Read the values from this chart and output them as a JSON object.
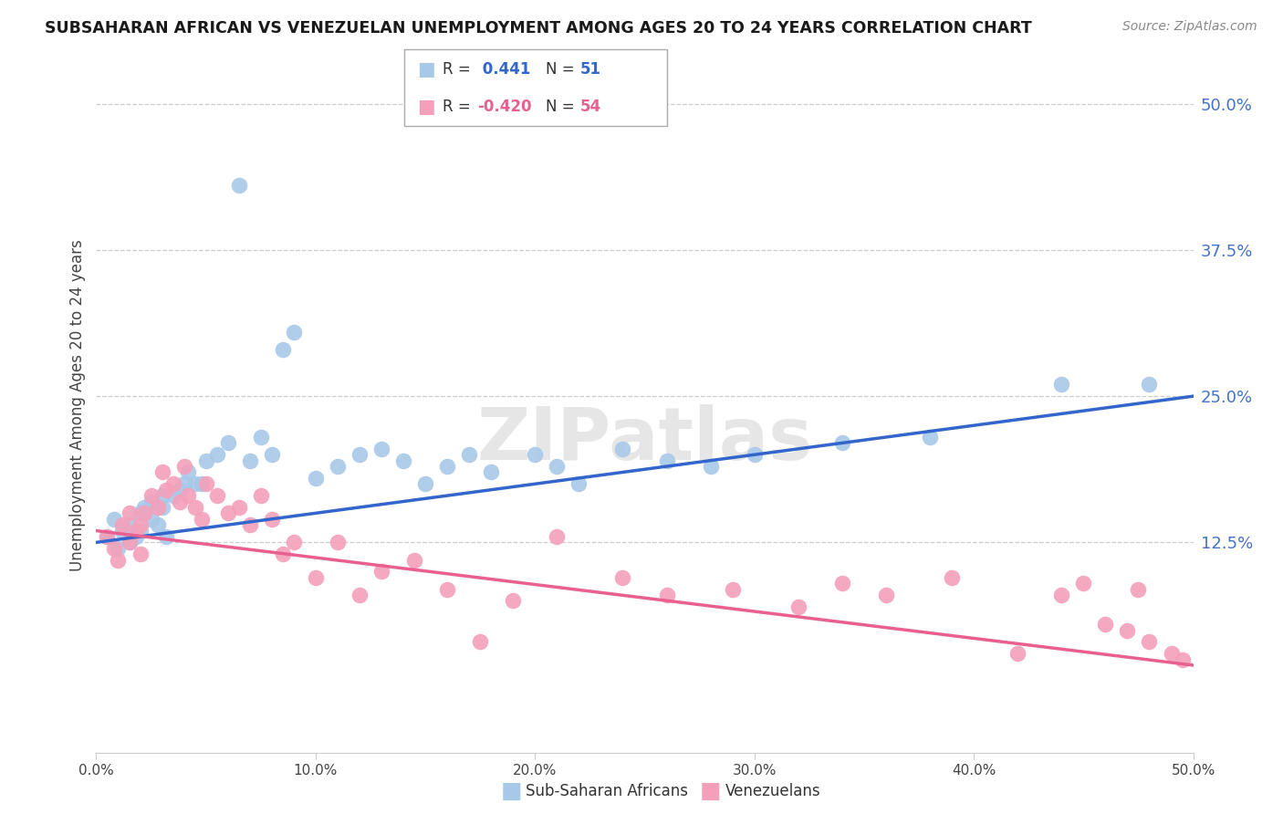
{
  "title": "SUBSAHARAN AFRICAN VS VENEZUELAN UNEMPLOYMENT AMONG AGES 20 TO 24 YEARS CORRELATION CHART",
  "source": "Source: ZipAtlas.com",
  "ylabel": "Unemployment Among Ages 20 to 24 years",
  "xlim": [
    0.0,
    0.5
  ],
  "ylim": [
    -0.055,
    0.54
  ],
  "ytick_labels": [
    "12.5%",
    "25.0%",
    "37.5%",
    "50.0%"
  ],
  "ytick_values": [
    0.125,
    0.25,
    0.375,
    0.5
  ],
  "xtick_values": [
    0.0,
    0.1,
    0.2,
    0.3,
    0.4,
    0.5
  ],
  "xtick_labels": [
    "0.0%",
    "10.0%",
    "20.0%",
    "30.0%",
    "40.0%",
    "50.0%"
  ],
  "blue_R": 0.441,
  "blue_N": 51,
  "pink_R": -0.42,
  "pink_N": 54,
  "blue_color": "#A8C8E8",
  "pink_color": "#F4A0BB",
  "blue_line_color": "#3366CC",
  "pink_line_color": "#E86090",
  "legend_blue_label": "Sub-Saharan Africans",
  "legend_pink_label": "Venezuelans",
  "blue_scatter_x": [
    0.005,
    0.008,
    0.01,
    0.012,
    0.015,
    0.015,
    0.018,
    0.02,
    0.02,
    0.022,
    0.025,
    0.025,
    0.028,
    0.03,
    0.03,
    0.032,
    0.035,
    0.038,
    0.04,
    0.042,
    0.045,
    0.048,
    0.05,
    0.055,
    0.06,
    0.065,
    0.07,
    0.075,
    0.08,
    0.085,
    0.09,
    0.1,
    0.11,
    0.12,
    0.13,
    0.14,
    0.15,
    0.16,
    0.17,
    0.18,
    0.2,
    0.21,
    0.22,
    0.24,
    0.26,
    0.28,
    0.3,
    0.34,
    0.38,
    0.44,
    0.48
  ],
  "blue_scatter_y": [
    0.13,
    0.145,
    0.12,
    0.135,
    0.14,
    0.125,
    0.13,
    0.15,
    0.135,
    0.155,
    0.145,
    0.16,
    0.14,
    0.155,
    0.165,
    0.13,
    0.165,
    0.17,
    0.175,
    0.185,
    0.175,
    0.175,
    0.195,
    0.2,
    0.21,
    0.43,
    0.195,
    0.215,
    0.2,
    0.29,
    0.305,
    0.18,
    0.19,
    0.2,
    0.205,
    0.195,
    0.175,
    0.19,
    0.2,
    0.185,
    0.2,
    0.19,
    0.175,
    0.205,
    0.195,
    0.19,
    0.2,
    0.21,
    0.215,
    0.26,
    0.26
  ],
  "pink_scatter_x": [
    0.005,
    0.008,
    0.01,
    0.012,
    0.015,
    0.015,
    0.018,
    0.02,
    0.02,
    0.022,
    0.025,
    0.028,
    0.03,
    0.032,
    0.035,
    0.038,
    0.04,
    0.042,
    0.045,
    0.048,
    0.05,
    0.055,
    0.06,
    0.065,
    0.07,
    0.075,
    0.08,
    0.085,
    0.09,
    0.1,
    0.11,
    0.12,
    0.13,
    0.145,
    0.16,
    0.175,
    0.19,
    0.21,
    0.24,
    0.26,
    0.29,
    0.32,
    0.34,
    0.36,
    0.39,
    0.42,
    0.44,
    0.45,
    0.46,
    0.47,
    0.475,
    0.48,
    0.49,
    0.495
  ],
  "pink_scatter_y": [
    0.13,
    0.12,
    0.11,
    0.14,
    0.15,
    0.125,
    0.135,
    0.14,
    0.115,
    0.15,
    0.165,
    0.155,
    0.185,
    0.17,
    0.175,
    0.16,
    0.19,
    0.165,
    0.155,
    0.145,
    0.175,
    0.165,
    0.15,
    0.155,
    0.14,
    0.165,
    0.145,
    0.115,
    0.125,
    0.095,
    0.125,
    0.08,
    0.1,
    0.11,
    0.085,
    0.04,
    0.075,
    0.13,
    0.095,
    0.08,
    0.085,
    0.07,
    0.09,
    0.08,
    0.095,
    0.03,
    0.08,
    0.09,
    0.055,
    0.05,
    0.085,
    0.04,
    0.03,
    0.025
  ]
}
